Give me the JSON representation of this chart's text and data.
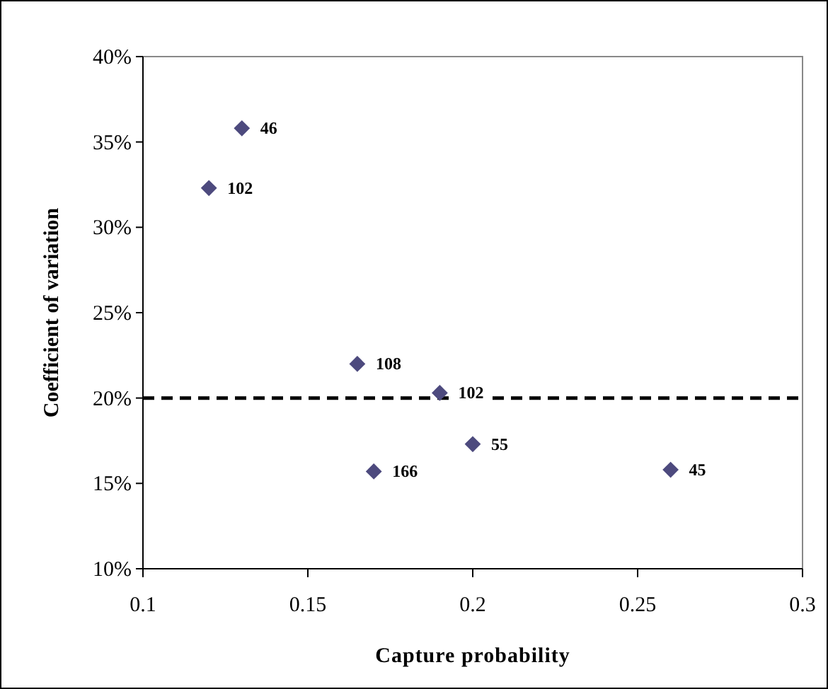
{
  "chart_data": {
    "type": "scatter",
    "xlabel": "Capture probability",
    "ylabel": "Coefficient of variation",
    "x": [
      0.13,
      0.12,
      0.165,
      0.19,
      0.2,
      0.17,
      0.26
    ],
    "values": [
      35.8,
      32.3,
      22.0,
      20.3,
      17.3,
      15.7,
      15.8
    ],
    "annotations": [
      {
        "text": "46",
        "x": 0.13,
        "y": 35.8
      },
      {
        "text": "102",
        "x": 0.12,
        "y": 32.3
      },
      {
        "text": "108",
        "x": 0.165,
        "y": 22.0
      },
      {
        "text": "102",
        "x": 0.19,
        "y": 20.3
      },
      {
        "text": "55",
        "x": 0.2,
        "y": 17.3
      },
      {
        "text": "166",
        "x": 0.17,
        "y": 15.7
      },
      {
        "text": "45",
        "x": 0.26,
        "y": 15.8
      }
    ],
    "color": "#4d4a7e",
    "marker": "diamond",
    "xlim": [
      0.1,
      0.3
    ],
    "xticks": [
      0.1,
      0.15,
      0.2,
      0.25,
      0.3
    ],
    "ylim": [
      10,
      40
    ],
    "yticks": [
      {
        "value": 10,
        "label": "10%"
      },
      {
        "value": 15,
        "label": "15%"
      },
      {
        "value": 20,
        "label": "20%"
      },
      {
        "value": 25,
        "label": "25%"
      },
      {
        "value": 30,
        "label": "30%"
      },
      {
        "value": 35,
        "label": "35%"
      },
      {
        "value": 40,
        "label": "40%"
      }
    ],
    "ref_lines": [
      {
        "axis": "y",
        "value": 20,
        "color": "#000000",
        "line_style": "dashed"
      }
    ],
    "grid": false
  }
}
